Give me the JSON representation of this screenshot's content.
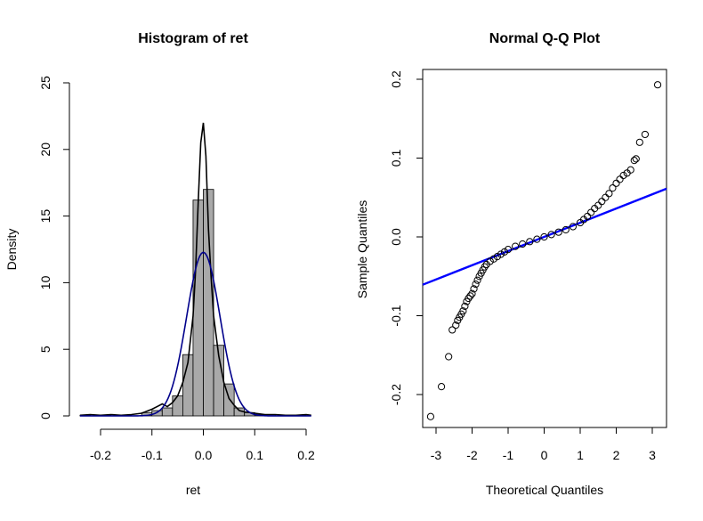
{
  "chart_data": [
    {
      "type": "histogram",
      "title": "Histogram of ret",
      "xlabel": "ret",
      "ylabel": "Density",
      "xlim": [
        -0.25,
        0.22
      ],
      "ylim": [
        0,
        25
      ],
      "x_ticks": [
        -0.2,
        -0.1,
        0.0,
        0.1,
        0.2
      ],
      "x_tick_labels": [
        "-0.2",
        "-0.1",
        "0.0",
        "0.1",
        "0.2"
      ],
      "y_ticks": [
        0,
        5,
        10,
        15,
        20,
        25
      ],
      "y_tick_labels": [
        "0",
        "5",
        "10",
        "15",
        "20",
        "25"
      ],
      "bin_width": 0.02,
      "bins": [
        {
          "x0": -0.24,
          "x1": -0.22,
          "density": 0.05
        },
        {
          "x0": -0.22,
          "x1": -0.2,
          "density": 0.0
        },
        {
          "x0": -0.2,
          "x1": -0.18,
          "density": 0.05
        },
        {
          "x0": -0.18,
          "x1": -0.16,
          "density": 0.0
        },
        {
          "x0": -0.16,
          "x1": -0.14,
          "density": 0.05
        },
        {
          "x0": -0.14,
          "x1": -0.12,
          "density": 0.0
        },
        {
          "x0": -0.12,
          "x1": -0.1,
          "density": 0.25
        },
        {
          "x0": -0.1,
          "x1": -0.08,
          "density": 0.4
        },
        {
          "x0": -0.08,
          "x1": -0.06,
          "density": 0.6
        },
        {
          "x0": -0.06,
          "x1": -0.04,
          "density": 1.5
        },
        {
          "x0": -0.04,
          "x1": -0.02,
          "density": 4.6
        },
        {
          "x0": -0.02,
          "x1": 0.0,
          "density": 16.2
        },
        {
          "x0": 0.0,
          "x1": 0.02,
          "density": 17.0
        },
        {
          "x0": 0.02,
          "x1": 0.04,
          "density": 5.3
        },
        {
          "x0": 0.04,
          "x1": 0.06,
          "density": 2.4
        },
        {
          "x0": 0.06,
          "x1": 0.08,
          "density": 0.6
        },
        {
          "x0": 0.08,
          "x1": 0.1,
          "density": 0.25
        },
        {
          "x0": 0.1,
          "x1": 0.12,
          "density": 0.1
        },
        {
          "x0": 0.12,
          "x1": 0.14,
          "density": 0.1
        },
        {
          "x0": 0.14,
          "x1": 0.16,
          "density": 0.0
        },
        {
          "x0": 0.16,
          "x1": 0.18,
          "density": 0.0
        },
        {
          "x0": 0.18,
          "x1": 0.2,
          "density": 0.05
        }
      ],
      "bar_fill": "#a9a9a9",
      "series": [
        {
          "kind": "kernel density",
          "color": "#000000",
          "x": [
            -0.24,
            -0.22,
            -0.2,
            -0.18,
            -0.16,
            -0.14,
            -0.12,
            -0.1,
            -0.09,
            -0.08,
            -0.07,
            -0.06,
            -0.05,
            -0.04,
            -0.03,
            -0.02,
            -0.015,
            -0.01,
            -0.005,
            0.0,
            0.005,
            0.01,
            0.015,
            0.02,
            0.03,
            0.04,
            0.05,
            0.06,
            0.07,
            0.08,
            0.1,
            0.12,
            0.14,
            0.16,
            0.18,
            0.2,
            0.21
          ],
          "y": [
            0.05,
            0.1,
            0.05,
            0.1,
            0.05,
            0.1,
            0.2,
            0.5,
            0.7,
            0.9,
            0.7,
            1.0,
            1.5,
            2.5,
            4.0,
            7.5,
            11.0,
            16.0,
            20.5,
            22.0,
            19.5,
            14.0,
            10.5,
            7.5,
            4.5,
            2.5,
            1.3,
            0.8,
            0.4,
            0.3,
            0.2,
            0.1,
            0.1,
            0.05,
            0.05,
            0.1,
            0.05
          ]
        },
        {
          "kind": "normal density",
          "color": "#00008b",
          "mean": 0.0,
          "sd": 0.0325
        }
      ]
    },
    {
      "type": "scatter",
      "title": "Normal Q-Q Plot",
      "xlabel": "Theoretical Quantiles",
      "ylabel": "Sample Quantiles",
      "xlim": [
        -3.35,
        3.45
      ],
      "ylim": [
        -0.245,
        0.21
      ],
      "x_ticks": [
        -3,
        -2,
        -1,
        0,
        1,
        2,
        3
      ],
      "x_tick_labels": [
        "-3",
        "-2",
        "-1",
        "0",
        "1",
        "2",
        "3"
      ],
      "y_ticks": [
        -0.2,
        -0.1,
        0.0,
        0.1,
        0.2
      ],
      "y_tick_labels": [
        "-0.2",
        "-0.1",
        "0.0",
        "0.1",
        "0.2"
      ],
      "points": {
        "x": [
          -3.15,
          -2.85,
          -2.65,
          -2.55,
          -2.45,
          -2.4,
          -2.35,
          -2.3,
          -2.25,
          -2.2,
          -2.15,
          -2.1,
          -2.05,
          -2.0,
          -1.95,
          -1.9,
          -1.85,
          -1.8,
          -1.75,
          -1.7,
          -1.65,
          -1.6,
          -1.5,
          -1.4,
          -1.3,
          -1.2,
          -1.1,
          -1.0,
          -0.8,
          -0.6,
          -0.4,
          -0.2,
          0.0,
          0.2,
          0.4,
          0.6,
          0.8,
          1.0,
          1.1,
          1.2,
          1.3,
          1.4,
          1.5,
          1.6,
          1.7,
          1.8,
          1.9,
          2.0,
          2.1,
          2.2,
          2.3,
          2.4,
          2.5,
          2.55,
          2.65,
          2.8,
          3.15
        ],
        "y": [
          -0.228,
          -0.19,
          -0.152,
          -0.118,
          -0.112,
          -0.106,
          -0.102,
          -0.098,
          -0.094,
          -0.088,
          -0.082,
          -0.078,
          -0.075,
          -0.072,
          -0.066,
          -0.06,
          -0.055,
          -0.05,
          -0.046,
          -0.042,
          -0.038,
          -0.035,
          -0.031,
          -0.028,
          -0.025,
          -0.022,
          -0.019,
          -0.016,
          -0.012,
          -0.009,
          -0.006,
          -0.003,
          0.0,
          0.003,
          0.006,
          0.009,
          0.013,
          0.018,
          0.022,
          0.026,
          0.031,
          0.036,
          0.04,
          0.045,
          0.05,
          0.055,
          0.062,
          0.068,
          0.073,
          0.078,
          0.081,
          0.085,
          0.097,
          0.099,
          0.12,
          0.13,
          0.193
        ],
        "marker": "open circle",
        "color": "#000000"
      },
      "reference_line": {
        "color": "#0000ff",
        "intercept": 0.0,
        "slope": 0.018
      }
    }
  ]
}
